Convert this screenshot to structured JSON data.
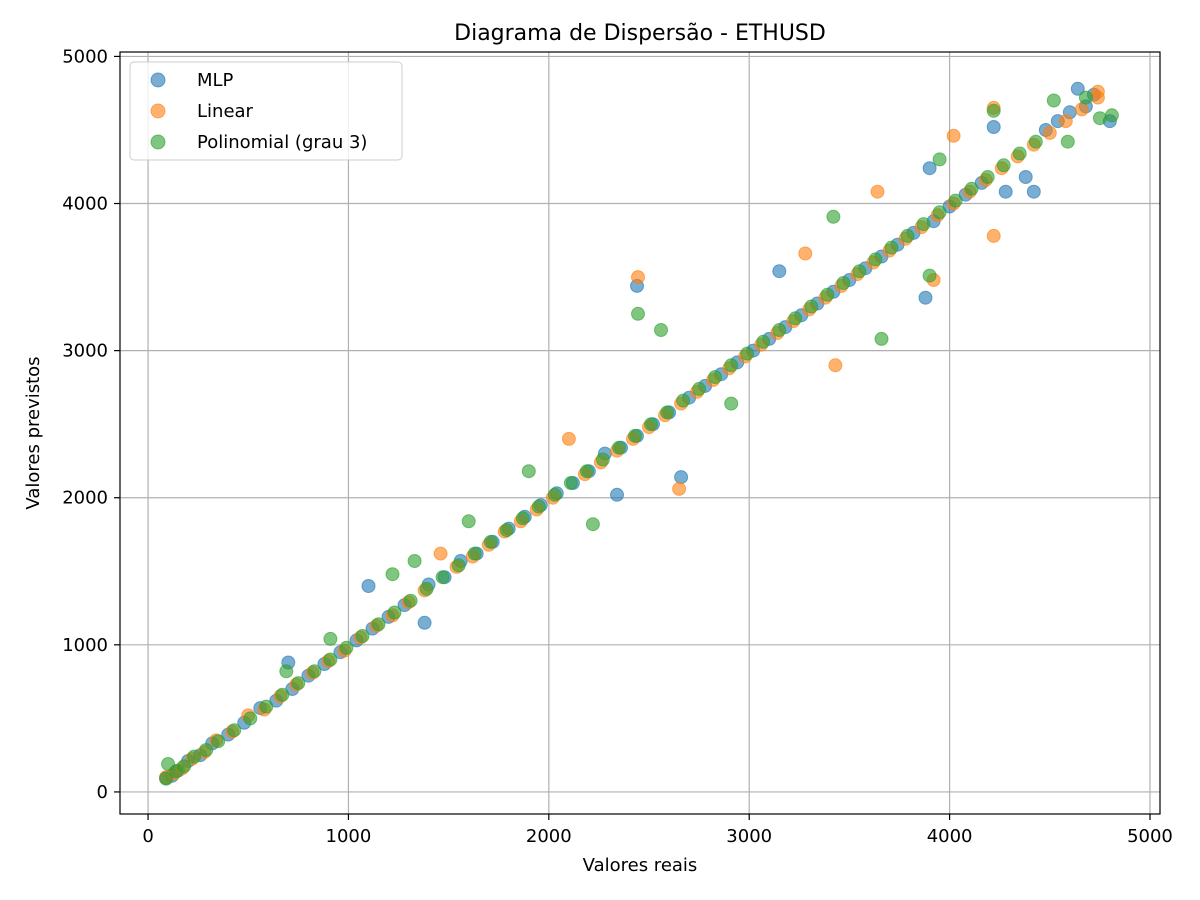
{
  "chart_data": {
    "type": "scatter",
    "title": "Diagrama de Dispersão - ETHUSD",
    "xlabel": "Valores reais",
    "ylabel": "Valores previstos",
    "xlim": [
      -140,
      5050
    ],
    "ylim": [
      -150,
      5030
    ],
    "xticks": [
      0,
      1000,
      2000,
      3000,
      4000,
      5000
    ],
    "yticks": [
      0,
      1000,
      2000,
      3000,
      4000,
      5000
    ],
    "grid": true,
    "legend": "top-left",
    "series": [
      {
        "name": "MLP",
        "color": "#1f77b4",
        "points": [
          [
            90,
            95
          ],
          [
            120,
            110
          ],
          [
            150,
            145
          ],
          [
            200,
            210
          ],
          [
            260,
            250
          ],
          [
            320,
            330
          ],
          [
            400,
            390
          ],
          [
            480,
            470
          ],
          [
            560,
            570
          ],
          [
            640,
            620
          ],
          [
            700,
            880
          ],
          [
            720,
            700
          ],
          [
            800,
            790
          ],
          [
            880,
            870
          ],
          [
            960,
            950
          ],
          [
            1040,
            1030
          ],
          [
            1100,
            1400
          ],
          [
            1120,
            1110
          ],
          [
            1200,
            1190
          ],
          [
            1280,
            1270
          ],
          [
            1380,
            1150
          ],
          [
            1400,
            1410
          ],
          [
            1480,
            1460
          ],
          [
            1560,
            1570
          ],
          [
            1640,
            1620
          ],
          [
            1720,
            1700
          ],
          [
            1800,
            1790
          ],
          [
            1880,
            1870
          ],
          [
            1960,
            1950
          ],
          [
            2040,
            2030
          ],
          [
            2120,
            2100
          ],
          [
            2200,
            2180
          ],
          [
            2280,
            2300
          ],
          [
            2340,
            2020
          ],
          [
            2360,
            2340
          ],
          [
            2440,
            3440
          ],
          [
            2440,
            2420
          ],
          [
            2520,
            2500
          ],
          [
            2600,
            2580
          ],
          [
            2660,
            2140
          ],
          [
            2700,
            2680
          ],
          [
            2780,
            2760
          ],
          [
            2860,
            2840
          ],
          [
            2940,
            2920
          ],
          [
            3020,
            3000
          ],
          [
            3100,
            3080
          ],
          [
            3150,
            3540
          ],
          [
            3180,
            3160
          ],
          [
            3260,
            3240
          ],
          [
            3340,
            3320
          ],
          [
            3420,
            3400
          ],
          [
            3500,
            3480
          ],
          [
            3580,
            3560
          ],
          [
            3660,
            3640
          ],
          [
            3740,
            3720
          ],
          [
            3820,
            3800
          ],
          [
            3880,
            3360
          ],
          [
            3900,
            4240
          ],
          [
            3920,
            3880
          ],
          [
            4000,
            3980
          ],
          [
            4080,
            4060
          ],
          [
            4160,
            4140
          ],
          [
            4220,
            4520
          ],
          [
            4280,
            4080
          ],
          [
            4380,
            4180
          ],
          [
            4420,
            4080
          ],
          [
            4480,
            4500
          ],
          [
            4540,
            4560
          ],
          [
            4600,
            4620
          ],
          [
            4640,
            4780
          ],
          [
            4680,
            4660
          ],
          [
            4720,
            4740
          ],
          [
            4800,
            4560
          ]
        ]
      },
      {
        "name": "Linear",
        "color": "#ff7f0e",
        "points": [
          [
            90,
            100
          ],
          [
            130,
            125
          ],
          [
            170,
            160
          ],
          [
            220,
            225
          ],
          [
            280,
            270
          ],
          [
            340,
            350
          ],
          [
            420,
            410
          ],
          [
            500,
            520
          ],
          [
            580,
            560
          ],
          [
            660,
            650
          ],
          [
            740,
            730
          ],
          [
            820,
            810
          ],
          [
            900,
            890
          ],
          [
            980,
            960
          ],
          [
            1060,
            1050
          ],
          [
            1140,
            1130
          ],
          [
            1220,
            1200
          ],
          [
            1300,
            1290
          ],
          [
            1380,
            1370
          ],
          [
            1460,
            1620
          ],
          [
            1540,
            1530
          ],
          [
            1620,
            1600
          ],
          [
            1700,
            1680
          ],
          [
            1780,
            1770
          ],
          [
            1860,
            1840
          ],
          [
            1940,
            1920
          ],
          [
            2020,
            2000
          ],
          [
            2100,
            2400
          ],
          [
            2180,
            2160
          ],
          [
            2260,
            2240
          ],
          [
            2340,
            2320
          ],
          [
            2420,
            2400
          ],
          [
            2445,
            3500
          ],
          [
            2500,
            2480
          ],
          [
            2580,
            2560
          ],
          [
            2650,
            2060
          ],
          [
            2660,
            2640
          ],
          [
            2740,
            2720
          ],
          [
            2820,
            2800
          ],
          [
            2900,
            2880
          ],
          [
            2980,
            2960
          ],
          [
            3060,
            3040
          ],
          [
            3140,
            3120
          ],
          [
            3220,
            3200
          ],
          [
            3280,
            3660
          ],
          [
            3300,
            3280
          ],
          [
            3380,
            3360
          ],
          [
            3430,
            2900
          ],
          [
            3460,
            3440
          ],
          [
            3540,
            3520
          ],
          [
            3620,
            3600
          ],
          [
            3640,
            4080
          ],
          [
            3700,
            3680
          ],
          [
            3780,
            3760
          ],
          [
            3860,
            3840
          ],
          [
            3920,
            3480
          ],
          [
            3940,
            3920
          ],
          [
            4020,
            4460
          ],
          [
            4020,
            4000
          ],
          [
            4100,
            4080
          ],
          [
            4180,
            4160
          ],
          [
            4220,
            4650
          ],
          [
            4220,
            3780
          ],
          [
            4260,
            4240
          ],
          [
            4340,
            4320
          ],
          [
            4420,
            4400
          ],
          [
            4500,
            4480
          ],
          [
            4580,
            4560
          ],
          [
            4660,
            4640
          ],
          [
            4740,
            4760
          ],
          [
            4740,
            4720
          ]
        ]
      },
      {
        "name": "Polinomial (grau 3)",
        "color": "#2ca02c",
        "points": [
          [
            90,
            90
          ],
          [
            100,
            190
          ],
          [
            140,
            140
          ],
          [
            180,
            175
          ],
          [
            230,
            240
          ],
          [
            290,
            285
          ],
          [
            350,
            345
          ],
          [
            430,
            420
          ],
          [
            510,
            500
          ],
          [
            590,
            580
          ],
          [
            670,
            660
          ],
          [
            690,
            820
          ],
          [
            750,
            740
          ],
          [
            830,
            820
          ],
          [
            910,
            1040
          ],
          [
            910,
            900
          ],
          [
            990,
            980
          ],
          [
            1070,
            1060
          ],
          [
            1150,
            1140
          ],
          [
            1220,
            1480
          ],
          [
            1230,
            1220
          ],
          [
            1310,
            1300
          ],
          [
            1330,
            1570
          ],
          [
            1390,
            1380
          ],
          [
            1470,
            1460
          ],
          [
            1550,
            1540
          ],
          [
            1600,
            1840
          ],
          [
            1630,
            1620
          ],
          [
            1710,
            1700
          ],
          [
            1790,
            1780
          ],
          [
            1870,
            1860
          ],
          [
            1900,
            2180
          ],
          [
            1950,
            1940
          ],
          [
            2030,
            2020
          ],
          [
            2110,
            2100
          ],
          [
            2190,
            2180
          ],
          [
            2220,
            1820
          ],
          [
            2270,
            2260
          ],
          [
            2350,
            2340
          ],
          [
            2430,
            2420
          ],
          [
            2445,
            3250
          ],
          [
            2510,
            2500
          ],
          [
            2560,
            3140
          ],
          [
            2590,
            2580
          ],
          [
            2670,
            2660
          ],
          [
            2750,
            2740
          ],
          [
            2830,
            2820
          ],
          [
            2910,
            2640
          ],
          [
            2910,
            2900
          ],
          [
            2990,
            2980
          ],
          [
            3070,
            3060
          ],
          [
            3150,
            3140
          ],
          [
            3230,
            3220
          ],
          [
            3310,
            3300
          ],
          [
            3390,
            3380
          ],
          [
            3420,
            3910
          ],
          [
            3470,
            3460
          ],
          [
            3550,
            3540
          ],
          [
            3630,
            3620
          ],
          [
            3660,
            3080
          ],
          [
            3710,
            3700
          ],
          [
            3790,
            3780
          ],
          [
            3870,
            3860
          ],
          [
            3900,
            3510
          ],
          [
            3950,
            4300
          ],
          [
            3950,
            3940
          ],
          [
            4030,
            4020
          ],
          [
            4110,
            4100
          ],
          [
            4190,
            4180
          ],
          [
            4220,
            4630
          ],
          [
            4270,
            4260
          ],
          [
            4350,
            4340
          ],
          [
            4430,
            4420
          ],
          [
            4520,
            4700
          ],
          [
            4590,
            4420
          ],
          [
            4680,
            4720
          ],
          [
            4750,
            4580
          ],
          [
            4810,
            4600
          ]
        ]
      }
    ]
  }
}
